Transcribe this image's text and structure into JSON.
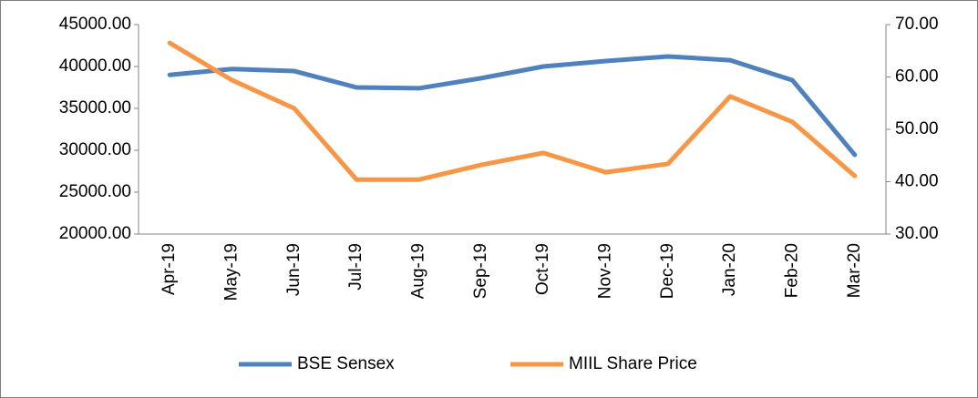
{
  "chart_data": {
    "type": "line",
    "categories": [
      "Apr-19",
      "May-19",
      "Jun-19",
      "Jul-19",
      "Aug-19",
      "Sep-19",
      "Oct-19",
      "Nov-19",
      "Dec-19",
      "Jan-20",
      "Feb-20",
      "Mar-20"
    ],
    "series": [
      {
        "name": "BSE Sensex",
        "color": "#4f81bd",
        "values": [
          39000,
          39700,
          39450,
          37500,
          37400,
          38600,
          40000,
          40650,
          41200,
          40750,
          38350,
          29450
        ]
      },
      {
        "name": "MIIL Share Price",
        "color": "#f79646",
        "axis": "y2",
        "values": [
          66.5,
          59.4,
          54.0,
          40.4,
          40.4,
          43.2,
          45.5,
          41.8,
          43.4,
          56.3,
          51.4,
          41.1
        ]
      }
    ],
    "ylim": [
      20000,
      45000
    ],
    "yticks": [
      {
        "value": 20000,
        "label": "20000.00"
      },
      {
        "value": 25000,
        "label": "25000.00"
      },
      {
        "value": 30000,
        "label": "30000.00"
      },
      {
        "value": 35000,
        "label": "35000.00"
      },
      {
        "value": 40000,
        "label": "40000.00"
      },
      {
        "value": 45000,
        "label": "45000.00"
      }
    ],
    "y2lim": [
      30,
      70
    ],
    "y2ticks": [
      {
        "value": 30,
        "label": "30.00"
      },
      {
        "value": 40,
        "label": "40.00"
      },
      {
        "value": 50,
        "label": "50.00"
      },
      {
        "value": 60,
        "label": "60.00"
      },
      {
        "value": 70,
        "label": "70.00"
      }
    ],
    "grid": false,
    "legend": "bottom"
  }
}
